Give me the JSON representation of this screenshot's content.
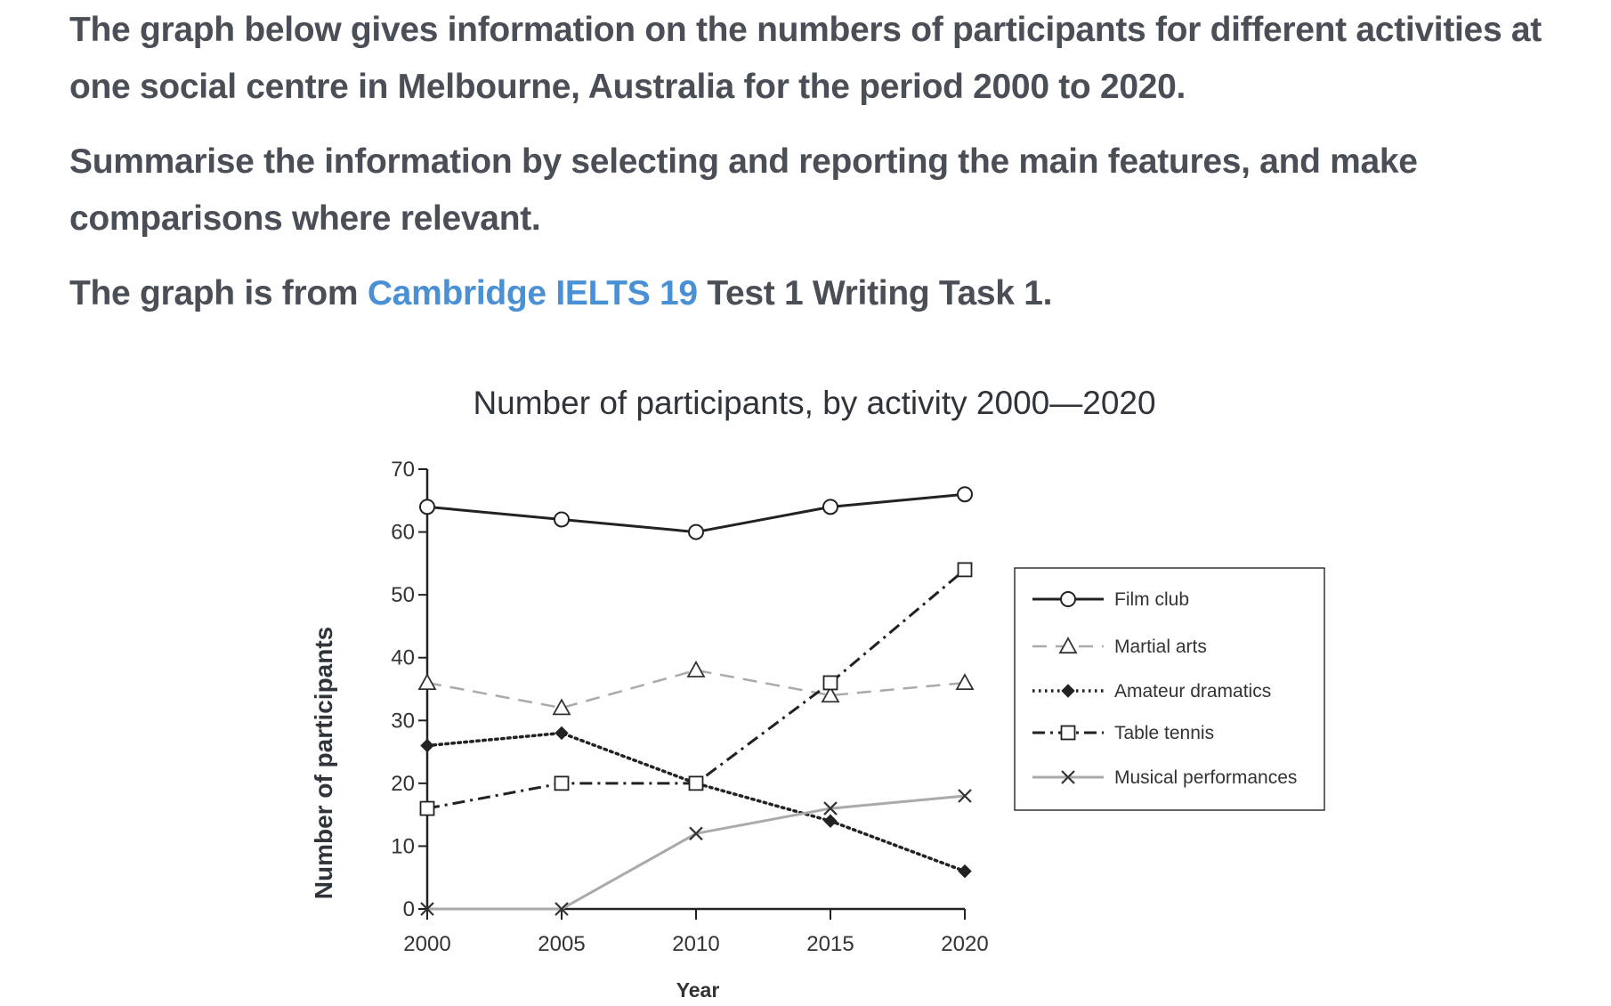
{
  "intro": {
    "paragraph1": "The graph below gives information on the numbers of participants for different activities at one social centre in Melbourne, Australia for the period 2000 to 2020.",
    "paragraph2": "Summarise the information by selecting and reporting the main features, and make comparisons where relevant.",
    "paragraph3_before": "The graph is from ",
    "paragraph3_link": "Cambridge IELTS 19",
    "paragraph3_after": " Test 1 Writing Task 1.",
    "link_color": "#4a90d4"
  },
  "chart_data": {
    "type": "line",
    "title": "Number of participants, by activity 2000—2020",
    "xlabel": "Year",
    "ylabel": "Number of participants",
    "x": [
      2000,
      2005,
      2010,
      2015,
      2020
    ],
    "x_tick_labels": [
      "2000",
      "2005",
      "2010",
      "2015",
      "2020"
    ],
    "ylim": [
      0,
      70
    ],
    "y_ticks": [
      0,
      10,
      20,
      30,
      40,
      50,
      60,
      70
    ],
    "y_tick_labels": [
      "0",
      "10",
      "20",
      "30",
      "40",
      "50",
      "60",
      "70"
    ],
    "grid": false,
    "legend_position": "right",
    "series": [
      {
        "name": "Film club",
        "values": [
          64,
          62,
          60,
          64,
          66
        ],
        "line_style": "solid",
        "marker": "circle",
        "color": "#222222"
      },
      {
        "name": "Martial arts",
        "values": [
          36,
          32,
          38,
          34,
          36
        ],
        "line_style": "dashed",
        "marker": "triangle",
        "color": "#aaaaaa"
      },
      {
        "name": "Amateur dramatics",
        "values": [
          26,
          28,
          20,
          14,
          6
        ],
        "line_style": "dotted",
        "marker": "diamond",
        "color": "#222222"
      },
      {
        "name": "Table tennis",
        "values": [
          16,
          20,
          20,
          36,
          54
        ],
        "line_style": "dashdot",
        "marker": "square",
        "color": "#222222"
      },
      {
        "name": "Musical performances",
        "values": [
          0,
          0,
          12,
          16,
          18
        ],
        "line_style": "solid",
        "marker": "x",
        "color": "#aaaaaa"
      }
    ]
  }
}
